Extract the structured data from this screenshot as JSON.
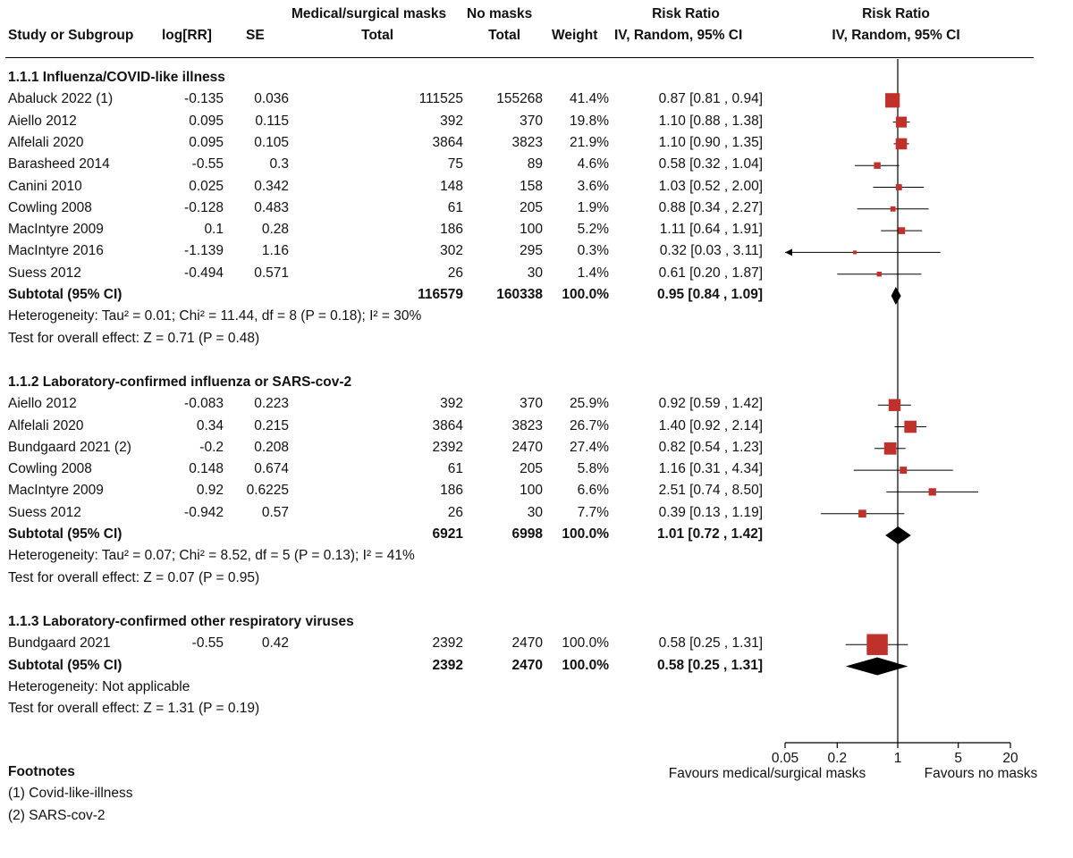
{
  "headers": {
    "study": "Study or Subgroup",
    "logrr": "log[RR]",
    "se": "SE",
    "group1": "Medical/surgical masks",
    "group2": "No masks",
    "total1": "Total",
    "total2": "Total",
    "weight": "Weight",
    "rr_top": "Risk Ratio",
    "rr_sub": "IV, Random, 95% CI",
    "plot_top": "Risk Ratio",
    "plot_sub": "IV, Random, 95% CI"
  },
  "chart_data": {
    "type": "forest",
    "x_scale": "log",
    "xlim": [
      0.05,
      20
    ],
    "x_ticks": [
      "0.05",
      "0.2",
      "1",
      "5",
      "20"
    ],
    "x_tick_values": [
      0.05,
      0.2,
      1,
      5,
      20
    ],
    "favours_left": "Favours medical/surgical masks",
    "favours_right": "Favours no masks",
    "marker_color": "#c0312b",
    "groups": [
      {
        "title": "1.1.1 Influenza/COVID-like illness",
        "studies": [
          {
            "study": "Abaluck 2022 (1)",
            "logrr": "-0.135",
            "se": "0.036",
            "total1": "111525",
            "total2": "155268",
            "weight_text": "41.4%",
            "ci_text": "0.87 [0.81 , 0.94]",
            "rr": 0.87,
            "lo": 0.81,
            "hi": 0.94,
            "weight": 41.4
          },
          {
            "study": "Aiello 2012",
            "logrr": "0.095",
            "se": "0.115",
            "total1": "392",
            "total2": "370",
            "weight_text": "19.8%",
            "ci_text": "1.10 [0.88 , 1.38]",
            "rr": 1.1,
            "lo": 0.88,
            "hi": 1.38,
            "weight": 19.8
          },
          {
            "study": "Alfelali 2020",
            "logrr": "0.095",
            "se": "0.105",
            "total1": "3864",
            "total2": "3823",
            "weight_text": "21.9%",
            "ci_text": "1.10 [0.90 , 1.35]",
            "rr": 1.1,
            "lo": 0.9,
            "hi": 1.35,
            "weight": 21.9
          },
          {
            "study": "Barasheed 2014",
            "logrr": "-0.55",
            "se": "0.3",
            "total1": "75",
            "total2": "89",
            "weight_text": "4.6%",
            "ci_text": "0.58 [0.32 , 1.04]",
            "rr": 0.58,
            "lo": 0.32,
            "hi": 1.04,
            "weight": 4.6
          },
          {
            "study": "Canini 2010",
            "logrr": "0.025",
            "se": "0.342",
            "total1": "148",
            "total2": "158",
            "weight_text": "3.6%",
            "ci_text": "1.03 [0.52 , 2.00]",
            "rr": 1.03,
            "lo": 0.52,
            "hi": 2.0,
            "weight": 3.6
          },
          {
            "study": "Cowling 2008",
            "logrr": "-0.128",
            "se": "0.483",
            "total1": "61",
            "total2": "205",
            "weight_text": "1.9%",
            "ci_text": "0.88 [0.34 , 2.27]",
            "rr": 0.88,
            "lo": 0.34,
            "hi": 2.27,
            "weight": 1.9
          },
          {
            "study": "MacIntyre 2009",
            "logrr": "0.1",
            "se": "0.28",
            "total1": "186",
            "total2": "100",
            "weight_text": "5.2%",
            "ci_text": "1.11 [0.64 , 1.91]",
            "rr": 1.11,
            "lo": 0.64,
            "hi": 1.91,
            "weight": 5.2
          },
          {
            "study": "MacIntyre 2016",
            "logrr": "-1.139",
            "se": "1.16",
            "total1": "302",
            "total2": "295",
            "weight_text": "0.3%",
            "ci_text": "0.32 [0.03 , 3.11]",
            "rr": 0.32,
            "lo": 0.03,
            "hi": 3.11,
            "weight": 0.3
          },
          {
            "study": "Suess 2012",
            "logrr": "-0.494",
            "se": "0.571",
            "total1": "26",
            "total2": "30",
            "weight_text": "1.4%",
            "ci_text": "0.61 [0.20 , 1.87]",
            "rr": 0.61,
            "lo": 0.2,
            "hi": 1.87,
            "weight": 1.4
          }
        ],
        "subtotal": {
          "label": "Subtotal (95% CI)",
          "total1": "116579",
          "total2": "160338",
          "weight_text": "100.0%",
          "ci_text": "0.95 [0.84 , 1.09]",
          "rr": 0.95,
          "lo": 0.84,
          "hi": 1.09
        },
        "heterogeneity": "Heterogeneity: Tau² = 0.01; Chi² = 11.44, df = 8 (P = 0.18); I² = 30%",
        "overall": "Test for overall effect: Z = 0.71 (P = 0.48)"
      },
      {
        "title": "1.1.2 Laboratory-confirmed influenza or SARS-cov-2",
        "studies": [
          {
            "study": "Aiello 2012",
            "logrr": "-0.083",
            "se": "0.223",
            "total1": "392",
            "total2": "370",
            "weight_text": "25.9%",
            "ci_text": "0.92 [0.59 , 1.42]",
            "rr": 0.92,
            "lo": 0.59,
            "hi": 1.42,
            "weight": 25.9
          },
          {
            "study": "Alfelali 2020",
            "logrr": "0.34",
            "se": "0.215",
            "total1": "3864",
            "total2": "3823",
            "weight_text": "26.7%",
            "ci_text": "1.40 [0.92 , 2.14]",
            "rr": 1.4,
            "lo": 0.92,
            "hi": 2.14,
            "weight": 26.7
          },
          {
            "study": "Bundgaard 2021 (2)",
            "logrr": "-0.2",
            "se": "0.208",
            "total1": "2392",
            "total2": "2470",
            "weight_text": "27.4%",
            "ci_text": "0.82 [0.54 , 1.23]",
            "rr": 0.82,
            "lo": 0.54,
            "hi": 1.23,
            "weight": 27.4
          },
          {
            "study": "Cowling 2008",
            "logrr": "0.148",
            "se": "0.674",
            "total1": "61",
            "total2": "205",
            "weight_text": "5.8%",
            "ci_text": "1.16 [0.31 , 4.34]",
            "rr": 1.16,
            "lo": 0.31,
            "hi": 4.34,
            "weight": 5.8
          },
          {
            "study": "MacIntyre 2009",
            "logrr": "0.92",
            "se": "0.6225",
            "total1": "186",
            "total2": "100",
            "weight_text": "6.6%",
            "ci_text": "2.51 [0.74 , 8.50]",
            "rr": 2.51,
            "lo": 0.74,
            "hi": 8.5,
            "weight": 6.6
          },
          {
            "study": "Suess 2012",
            "logrr": "-0.942",
            "se": "0.57",
            "total1": "26",
            "total2": "30",
            "weight_text": "7.7%",
            "ci_text": "0.39 [0.13 , 1.19]",
            "rr": 0.39,
            "lo": 0.13,
            "hi": 1.19,
            "weight": 7.7
          }
        ],
        "subtotal": {
          "label": "Subtotal (95% CI)",
          "total1": "6921",
          "total2": "6998",
          "weight_text": "100.0%",
          "ci_text": "1.01 [0.72 , 1.42]",
          "rr": 1.01,
          "lo": 0.72,
          "hi": 1.42
        },
        "heterogeneity": "Heterogeneity: Tau² = 0.07; Chi² = 8.52, df = 5 (P = 0.13); I² = 41%",
        "overall": "Test for overall effect: Z = 0.07 (P = 0.95)"
      },
      {
        "title": "1.1.3 Laboratory-confirmed other respiratory viruses",
        "studies": [
          {
            "study": "Bundgaard 2021",
            "logrr": "-0.55",
            "se": "0.42",
            "total1": "2392",
            "total2": "2470",
            "weight_text": "100.0%",
            "ci_text": "0.58 [0.25 , 1.31]",
            "rr": 0.58,
            "lo": 0.25,
            "hi": 1.31,
            "weight": 100.0
          }
        ],
        "subtotal": {
          "label": "Subtotal (95% CI)",
          "total1": "2392",
          "total2": "2470",
          "weight_text": "100.0%",
          "ci_text": "0.58 [0.25 , 1.31]",
          "rr": 0.58,
          "lo": 0.25,
          "hi": 1.31
        },
        "heterogeneity": "Heterogeneity: Not applicable",
        "overall": "Test for overall effect: Z = 1.31 (P = 0.19)"
      }
    ]
  },
  "footnotes": {
    "title": "Footnotes",
    "items": [
      "(1) Covid-like-illness",
      "(2) SARS-cov-2"
    ]
  }
}
